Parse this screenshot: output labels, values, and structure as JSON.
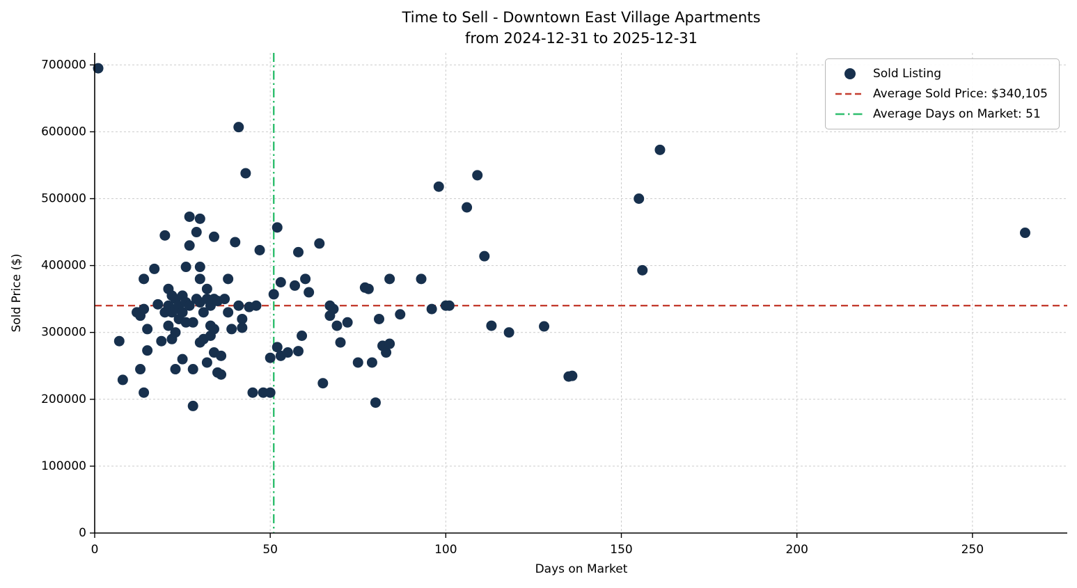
{
  "chart_data": {
    "type": "scatter",
    "title": "Time to Sell - Downtown East Village Apartments",
    "subtitle": "from 2024-12-31 to 2025-12-31",
    "xlabel": "Days on Market",
    "ylabel": "Sold Price ($)",
    "xlim": [
      0,
      277
    ],
    "ylim": [
      0,
      718000
    ],
    "x_ticks": [
      0,
      50,
      100,
      150,
      200,
      250
    ],
    "y_ticks": [
      0,
      100000,
      200000,
      300000,
      400000,
      500000,
      600000,
      700000
    ],
    "grid": true,
    "legend_position": "upper right",
    "legend": [
      {
        "label": "Sold Listing",
        "marker": "dot"
      },
      {
        "label": "Average Sold Price: $340,105",
        "marker": "dashed-line"
      },
      {
        "label": "Average Days on Market: 51",
        "marker": "dashdot-line"
      }
    ],
    "avg_sold_price": 340105,
    "avg_days_on_market": 51,
    "colors": {
      "marker": "#17304d",
      "avg_price_line": "#c43d2f",
      "avg_days_line": "#2fbe6e",
      "grid": "#cccccc",
      "axis": "#000000"
    },
    "series": [
      {
        "name": "Sold Listing",
        "points": [
          [
            1,
            695000
          ],
          [
            7,
            287000
          ],
          [
            8,
            229000
          ],
          [
            12,
            330000
          ],
          [
            13,
            325000
          ],
          [
            13,
            245000
          ],
          [
            14,
            380000
          ],
          [
            14,
            335000
          ],
          [
            14,
            210000
          ],
          [
            15,
            305000
          ],
          [
            15,
            273000
          ],
          [
            17,
            395000
          ],
          [
            18,
            342000
          ],
          [
            19,
            287000
          ],
          [
            20,
            445000
          ],
          [
            20,
            330000
          ],
          [
            21,
            365000
          ],
          [
            21,
            340000
          ],
          [
            21,
            310000
          ],
          [
            22,
            355000
          ],
          [
            22,
            330000
          ],
          [
            22,
            290000
          ],
          [
            23,
            350000
          ],
          [
            23,
            335000
          ],
          [
            23,
            300000
          ],
          [
            23,
            245000
          ],
          [
            24,
            340000
          ],
          [
            24,
            320000
          ],
          [
            25,
            355000
          ],
          [
            25,
            330000
          ],
          [
            25,
            260000
          ],
          [
            26,
            398000
          ],
          [
            26,
            345000
          ],
          [
            26,
            315000
          ],
          [
            27,
            473000
          ],
          [
            27,
            430000
          ],
          [
            27,
            340000
          ],
          [
            28,
            315000
          ],
          [
            28,
            245000
          ],
          [
            28,
            190000
          ],
          [
            29,
            450000
          ],
          [
            29,
            350000
          ],
          [
            30,
            470000
          ],
          [
            30,
            398000
          ],
          [
            30,
            380000
          ],
          [
            30,
            345000
          ],
          [
            30,
            285000
          ],
          [
            31,
            330000
          ],
          [
            31,
            290000
          ],
          [
            32,
            365000
          ],
          [
            32,
            350000
          ],
          [
            32,
            255000
          ],
          [
            33,
            340000
          ],
          [
            33,
            310000
          ],
          [
            33,
            295000
          ],
          [
            34,
            443000
          ],
          [
            34,
            350000
          ],
          [
            34,
            305000
          ],
          [
            34,
            270000
          ],
          [
            35,
            347000
          ],
          [
            35,
            240000
          ],
          [
            36,
            265000
          ],
          [
            36,
            237000
          ],
          [
            37,
            350000
          ],
          [
            38,
            380000
          ],
          [
            38,
            330000
          ],
          [
            39,
            305000
          ],
          [
            40,
            435000
          ],
          [
            41,
            607000
          ],
          [
            41,
            340000
          ],
          [
            42,
            320000
          ],
          [
            42,
            307000
          ],
          [
            43,
            538000
          ],
          [
            44,
            338000
          ],
          [
            45,
            210000
          ],
          [
            46,
            340000
          ],
          [
            47,
            423000
          ],
          [
            48,
            210000
          ],
          [
            50,
            262000
          ],
          [
            50,
            210000
          ],
          [
            51,
            357000
          ],
          [
            52,
            457000
          ],
          [
            52,
            278000
          ],
          [
            53,
            375000
          ],
          [
            53,
            265000
          ],
          [
            55,
            270000
          ],
          [
            57,
            370000
          ],
          [
            58,
            420000
          ],
          [
            58,
            272000
          ],
          [
            59,
            295000
          ],
          [
            60,
            380000
          ],
          [
            61,
            360000
          ],
          [
            64,
            433000
          ],
          [
            65,
            224000
          ],
          [
            67,
            340000
          ],
          [
            67,
            325000
          ],
          [
            68,
            335000
          ],
          [
            69,
            310000
          ],
          [
            70,
            285000
          ],
          [
            72,
            315000
          ],
          [
            75,
            255000
          ],
          [
            77,
            367000
          ],
          [
            78,
            365000
          ],
          [
            79,
            255000
          ],
          [
            80,
            195000
          ],
          [
            81,
            320000
          ],
          [
            82,
            280000
          ],
          [
            83,
            270000
          ],
          [
            84,
            380000
          ],
          [
            84,
            283000
          ],
          [
            87,
            327000
          ],
          [
            93,
            380000
          ],
          [
            96,
            335000
          ],
          [
            98,
            518000
          ],
          [
            100,
            340000
          ],
          [
            101,
            340000
          ],
          [
            106,
            487000
          ],
          [
            109,
            535000
          ],
          [
            111,
            414000
          ],
          [
            113,
            310000
          ],
          [
            118,
            300000
          ],
          [
            128,
            309000
          ],
          [
            135,
            234000
          ],
          [
            136,
            235000
          ],
          [
            155,
            500000
          ],
          [
            156,
            393000
          ],
          [
            161,
            573000
          ],
          [
            265,
            449000
          ]
        ]
      }
    ]
  }
}
